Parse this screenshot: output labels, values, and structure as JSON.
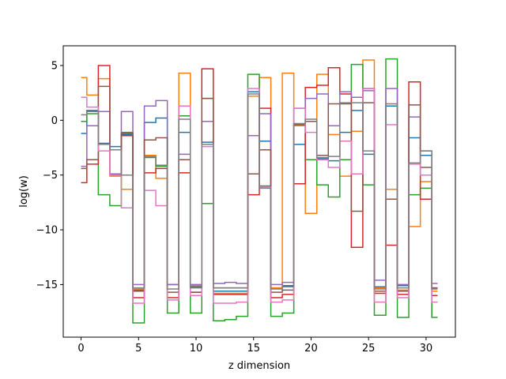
{
  "chart_data": {
    "type": "line",
    "style": "steps-mid",
    "title": "",
    "xlabel": "z dimension",
    "ylabel": "log(w)",
    "xlim": [
      -1.55,
      32.55
    ],
    "ylim": [
      -19.8,
      6.8
    ],
    "xticks": [
      0,
      5,
      10,
      15,
      20,
      25,
      30
    ],
    "yticks": [
      -15,
      -10,
      -5,
      0,
      5
    ],
    "grid": false,
    "legend": "none",
    "x": [
      0,
      1,
      2,
      3,
      4,
      5,
      6,
      7,
      8,
      9,
      10,
      11,
      12,
      13,
      14,
      15,
      16,
      17,
      18,
      19,
      20,
      21,
      22,
      23,
      24,
      25,
      26,
      27,
      28,
      29,
      30,
      31
    ],
    "series": [
      {
        "color": "#1f77b4",
        "values": [
          -1.2,
          0.9,
          -2.1,
          -2.4,
          -1.3,
          -15.5,
          -0.2,
          0.2,
          -15.0,
          -1.1,
          -15.2,
          -2.0,
          -15.6,
          -15.6,
          -15.6,
          2.6,
          -1.9,
          -15.3,
          -15.1,
          -2.2,
          -0.1,
          -3.5,
          -3.7,
          -1.1,
          0.9,
          -3.1,
          -15.2,
          1.3,
          -15.1,
          -1.6,
          -3.2,
          -15.3
        ]
      },
      {
        "color": "#ff7f0e",
        "values": [
          3.9,
          2.3,
          3.8,
          -5.1,
          -6.3,
          -15.4,
          -3.2,
          -5.3,
          -15.0,
          4.3,
          -15.1,
          2.0,
          -15.8,
          -15.8,
          -15.8,
          2.2,
          3.9,
          -15.3,
          4.3,
          -0.5,
          -8.5,
          4.2,
          -1.3,
          -5.1,
          -1.0,
          5.5,
          -15.3,
          -6.3,
          -15.5,
          -9.7,
          -5.6,
          -15.6
        ]
      },
      {
        "color": "#2ca02c",
        "values": [
          -0.1,
          0.6,
          -6.8,
          -7.8,
          -1.1,
          -18.5,
          -3.4,
          -4.2,
          -17.6,
          0.4,
          -17.6,
          -7.6,
          -18.3,
          -18.2,
          -17.9,
          4.2,
          -6.0,
          -17.9,
          -17.6,
          -0.4,
          -3.6,
          -5.9,
          -7.0,
          -3.6,
          5.1,
          -5.9,
          -17.8,
          5.6,
          -18.0,
          -6.8,
          -6.2,
          -18.0
        ]
      },
      {
        "color": "#d62728",
        "values": [
          -5.7,
          -4.0,
          5.0,
          -4.9,
          -1.4,
          -16.2,
          -4.8,
          -4.4,
          -16.2,
          -4.8,
          -15.7,
          4.7,
          -15.9,
          -15.9,
          -15.9,
          -6.8,
          1.1,
          -16.2,
          -15.9,
          -5.8,
          3.0,
          3.2,
          4.8,
          2.4,
          -11.6,
          2.9,
          -15.8,
          -11.4,
          -15.9,
          3.5,
          -7.2,
          -16.0
        ]
      },
      {
        "color": "#9467bd",
        "values": [
          -4.2,
          -0.5,
          0.8,
          -4.9,
          0.8,
          -15.0,
          1.3,
          1.8,
          -15.0,
          -3.1,
          -15.0,
          -0.1,
          -14.9,
          -14.8,
          -14.9,
          -1.4,
          0.6,
          -15.0,
          -14.8,
          1.1,
          2.0,
          2.4,
          -0.5,
          2.6,
          2.1,
          2.7,
          -14.6,
          2.9,
          -15.0,
          0.3,
          -2.8,
          -14.9
        ]
      },
      {
        "color": "#8c564b",
        "values": [
          -4.4,
          -3.6,
          3.1,
          -2.7,
          -1.2,
          -15.6,
          -1.8,
          -1.6,
          -15.7,
          -3.6,
          -15.7,
          2.0,
          -15.3,
          -15.3,
          -15.3,
          -4.9,
          -2.7,
          -15.7,
          -15.5,
          -0.4,
          -0.1,
          -3.2,
          1.5,
          1.5,
          -8.3,
          1.6,
          -15.6,
          -7.2,
          -15.6,
          1.4,
          -4.3,
          -15.3
        ]
      },
      {
        "color": "#e377c2",
        "values": [
          2.1,
          1.2,
          -2.8,
          -5.0,
          -8.0,
          -16.7,
          -6.4,
          -7.8,
          -16.4,
          1.3,
          -16.0,
          -2.4,
          -16.7,
          -16.7,
          -16.6,
          2.9,
          -6.1,
          -16.6,
          -16.4,
          1.1,
          -1.1,
          -3.6,
          -4.3,
          -1.9,
          -4.9,
          2.9,
          -16.6,
          -0.4,
          -16.2,
          -4.0,
          -5.0,
          -16.6
        ]
      },
      {
        "color": "#7f7f7f",
        "values": [
          0.5,
          0.8,
          -2.2,
          -2.7,
          -5.0,
          -15.3,
          -3.3,
          -4.1,
          -15.4,
          0.1,
          -15.3,
          -2.2,
          -15.3,
          -15.3,
          -15.3,
          2.4,
          -6.2,
          -15.4,
          -15.2,
          -0.3,
          0.1,
          -3.4,
          -3.3,
          1.6,
          1.6,
          -2.8,
          -15.4,
          1.5,
          -15.3,
          -3.9,
          -2.8,
          -15.4
        ]
      }
    ]
  }
}
